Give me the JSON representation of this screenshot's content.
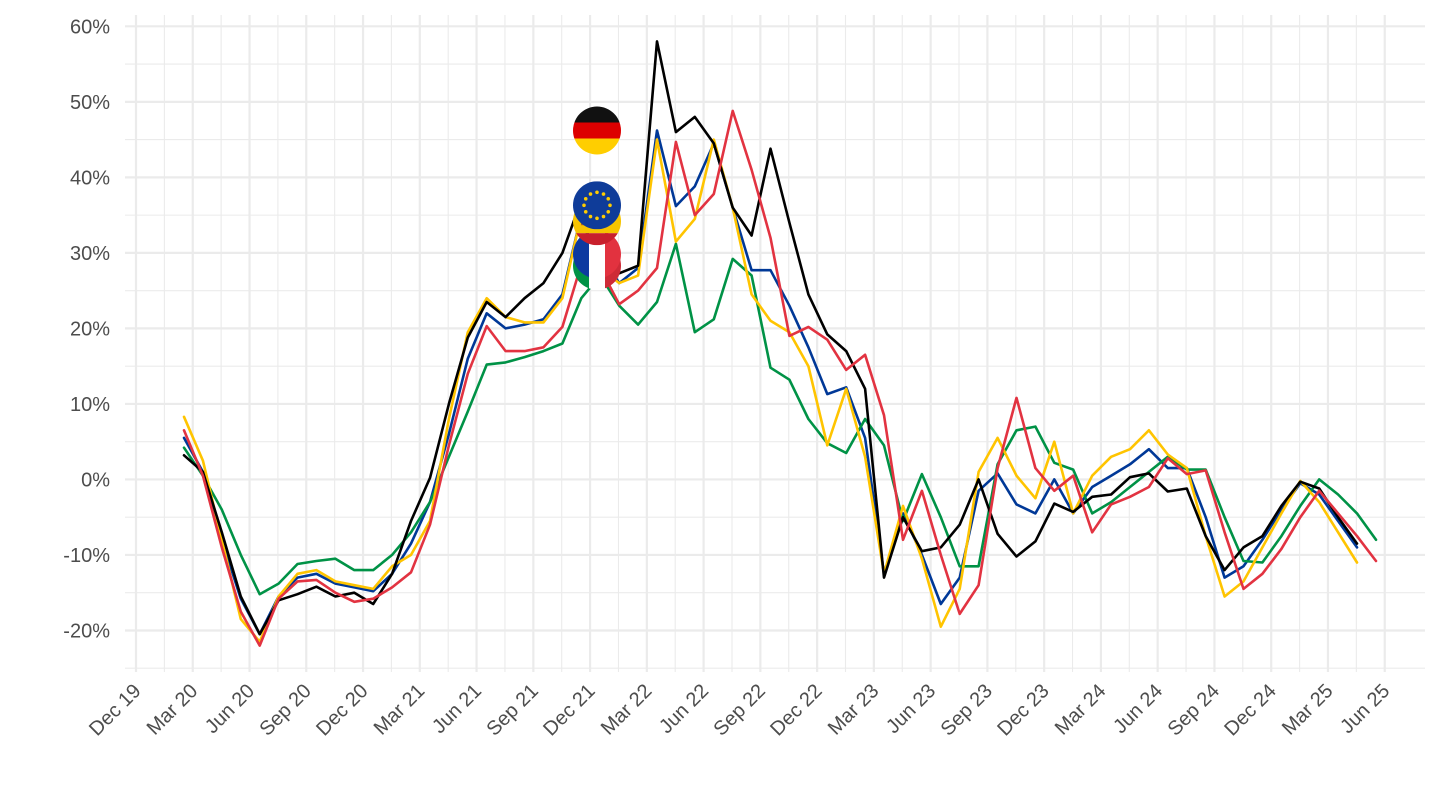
{
  "chart_data": {
    "type": "line",
    "title": "",
    "xlabel": "",
    "ylabel": "",
    "grid": true,
    "legend": "none",
    "x_start": "2020-01",
    "x_ticks": [
      "Dec 19",
      "Mar 20",
      "Jun 20",
      "Sep 20",
      "Dec 20",
      "Mar 21",
      "Jun 21",
      "Sep 21",
      "Dec 21",
      "Mar 22",
      "Jun 22",
      "Sep 22",
      "Dec 22",
      "Mar 23",
      "Jun 23",
      "Sep 23",
      "Dec 23",
      "Mar 24",
      "Jun 24",
      "Sep 24",
      "Dec 24",
      "Mar 25",
      "Jun 25"
    ],
    "y_ticks": [
      "-20%",
      "-10%",
      "0%",
      "10%",
      "20%",
      "30%",
      "40%",
      "50%",
      "60%"
    ],
    "y_tick_values": [
      -20,
      -10,
      0,
      10,
      20,
      30,
      40,
      50,
      60
    ],
    "ylim": [
      -25.5,
      61.5
    ],
    "series": [
      {
        "flag": "france",
        "color": "#003897",
        "values": [
          5.5,
          1.0,
          -8,
          -15.8,
          -20.5,
          -15.5,
          -13,
          -12.5,
          -13.8,
          -14.3,
          -14.8,
          -12.5,
          -8.5,
          -3,
          6,
          16,
          22,
          20,
          20.5,
          21.2,
          24.5,
          35,
          30,
          26,
          28,
          46.2,
          36.2,
          38.8,
          44.5,
          36,
          27.7,
          27.7,
          23,
          17.5,
          11.3,
          12.2,
          5.5,
          -12.5,
          -4.5,
          -10,
          -16.5,
          -13,
          -1.5,
          0.8,
          -3.3,
          -4.5,
          0,
          -4.5,
          -1,
          0.5,
          2,
          4,
          1.5,
          1.5,
          -5,
          -13,
          -11.5,
          -8,
          -4,
          -0.5,
          -2,
          -5.5,
          -9
        ]
      },
      {
        "flag": "italy",
        "color": "#009246",
        "values": [
          4.2,
          0.5,
          -4,
          -10,
          -15.2,
          -13.8,
          -11.2,
          -10.8,
          -10.5,
          -12,
          -12,
          -10,
          -7,
          -3,
          3,
          9,
          15.2,
          15.5,
          16.2,
          17,
          18,
          24,
          27,
          23,
          20.5,
          23.5,
          31.2,
          19.5,
          21.2,
          29.2,
          27,
          14.8,
          13.2,
          8,
          4.8,
          3.5,
          8,
          4.5,
          -5.5,
          0.7,
          -5,
          -11.5,
          -11.5,
          2,
          6.5,
          7,
          2.2,
          1.3,
          -4.5,
          -3,
          -1,
          1,
          3,
          1.3,
          1.3,
          -5,
          -10.8,
          -11,
          -7.5,
          -3.5,
          0,
          -2,
          -4.5,
          -8
        ]
      },
      {
        "flag": "spain",
        "color": "#ffc400",
        "values": [
          8.3,
          2.5,
          -8,
          -18.5,
          -21.5,
          -15.5,
          -12.5,
          -12,
          -13.5,
          -14,
          -14.5,
          -11.5,
          -10,
          -5.5,
          8,
          19.5,
          24,
          21.5,
          20.8,
          20.8,
          24,
          35,
          28,
          26,
          27,
          45,
          31.5,
          34.5,
          45,
          36,
          24.5,
          21,
          19.5,
          15,
          4.5,
          12,
          3,
          -12.5,
          -3.5,
          -10.5,
          -19.5,
          -14.5,
          1,
          5.5,
          0.5,
          -2.5,
          5,
          -4.5,
          0.5,
          3,
          4,
          6.5,
          3.3,
          1.5,
          -7.5,
          -15.5,
          -13.5,
          -9,
          -4.5,
          -0.2,
          -3,
          -7,
          -11
        ]
      },
      {
        "flag": "germany",
        "color": "#000000",
        "values": [
          3.2,
          1.0,
          -7,
          -15.5,
          -20.5,
          -16,
          -15.2,
          -14.2,
          -15.5,
          -15,
          -16.5,
          -12.5,
          -5.5,
          0.2,
          10,
          18.8,
          23.5,
          21.5,
          24,
          26,
          30,
          37,
          33,
          27.3,
          28.3,
          58,
          46,
          48,
          44.5,
          36,
          32.3,
          43.8,
          34,
          24.5,
          19.2,
          17,
          12,
          -13,
          -5,
          -9.5,
          -9,
          -6,
          0,
          -7.2,
          -10.2,
          -8.2,
          -3.2,
          -4.3,
          -2.3,
          -2,
          0.3,
          0.8,
          -1.6,
          -1.2,
          -7.5,
          -12,
          -9,
          -7.5,
          -3.5,
          -0.3,
          -1.2,
          -5,
          -8.5
        ]
      },
      {
        "flag": "eu",
        "color": "#e23341",
        "values": [
          6.5,
          0.5,
          -9,
          -17.5,
          -22,
          -15.8,
          -13.5,
          -13.3,
          -15,
          -16.2,
          -15.8,
          -14.3,
          -12.3,
          -6,
          4.5,
          14,
          20.3,
          17,
          17,
          17.5,
          20.2,
          28.5,
          28,
          23.2,
          25,
          28,
          44.7,
          35,
          37.8,
          48.8,
          41,
          32,
          19,
          20.2,
          18.5,
          14.5,
          16.5,
          8.5,
          -8,
          -1.5,
          -10,
          -17.8,
          -14,
          1.5,
          10.8,
          1.5,
          -1.5,
          0.5,
          -7,
          -3.3,
          -2.3,
          -1,
          2.8,
          0.7,
          1.2,
          -7,
          -14.5,
          -12.5,
          -9.2,
          -5,
          -1.5,
          -4.5,
          -7.5,
          -10.8
        ]
      }
    ],
    "flag_marker_values": {
      "germany": 46.2,
      "eu": 36.3,
      "spain": 34.2,
      "france": 29.8,
      "italy": 28.3
    }
  }
}
